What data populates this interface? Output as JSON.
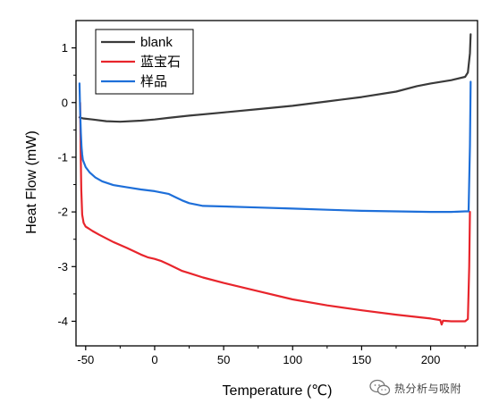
{
  "chart_data": {
    "type": "line",
    "title": "",
    "xlabel": "Temperature (℃)",
    "ylabel": "Heat Flow (mW)",
    "xlim": [
      -57,
      234
    ],
    "ylim": [
      -4.45,
      1.5
    ],
    "xticks": [
      -50,
      0,
      50,
      100,
      150,
      200
    ],
    "yticks": [
      1,
      0,
      -1,
      -2,
      -3,
      -4
    ],
    "grid": false,
    "legend_position": "top-left",
    "series": [
      {
        "name": "blank",
        "color": "#3a3a3a",
        "x": [
          -54.5,
          -52,
          -45,
          -35,
          -25,
          -10,
          0,
          10,
          25,
          50,
          75,
          100,
          125,
          150,
          175,
          190,
          200,
          215,
          225,
          227,
          228.5,
          229
        ],
        "y": [
          -0.27,
          -0.29,
          -0.31,
          -0.34,
          -0.35,
          -0.33,
          -0.31,
          -0.28,
          -0.24,
          -0.18,
          -0.12,
          -0.06,
          0.02,
          0.1,
          0.2,
          0.3,
          0.35,
          0.41,
          0.47,
          0.55,
          0.9,
          1.25
        ]
      },
      {
        "name": "蓝宝石",
        "color": "#e8252c",
        "x": [
          -54,
          -53.6,
          -53.2,
          -52.5,
          -51.5,
          -50,
          -48,
          -45,
          -40,
          -30,
          -20,
          -10,
          -5,
          0,
          5,
          10,
          15,
          20,
          25,
          35,
          50,
          75,
          100,
          125,
          150,
          175,
          200,
          207,
          208,
          209,
          215,
          225,
          227,
          228,
          228.5
        ],
        "y": [
          0.0,
          -0.9,
          -1.6,
          -2.05,
          -2.2,
          -2.27,
          -2.3,
          -2.35,
          -2.42,
          -2.55,
          -2.66,
          -2.78,
          -2.83,
          -2.86,
          -2.9,
          -2.96,
          -3.02,
          -3.08,
          -3.12,
          -3.2,
          -3.3,
          -3.45,
          -3.6,
          -3.71,
          -3.8,
          -3.88,
          -3.95,
          -3.98,
          -4.06,
          -3.99,
          -4.0,
          -4.0,
          -3.96,
          -3.0,
          -2.0
        ]
      },
      {
        "name": "样品",
        "color": "#1e6fd9",
        "x": [
          -54.5,
          -54,
          -53.5,
          -53,
          -52.5,
          -52,
          -50,
          -47,
          -43,
          -38,
          -30,
          -20,
          -10,
          0,
          10,
          15,
          20,
          25,
          35,
          50,
          75,
          100,
          125,
          150,
          175,
          200,
          215,
          225,
          227.5,
          228.5,
          229
        ],
        "y": [
          0.35,
          -0.15,
          -0.55,
          -0.82,
          -0.95,
          -1.05,
          -1.18,
          -1.28,
          -1.37,
          -1.44,
          -1.51,
          -1.55,
          -1.59,
          -1.62,
          -1.67,
          -1.73,
          -1.79,
          -1.84,
          -1.89,
          -1.9,
          -1.92,
          -1.94,
          -1.96,
          -1.98,
          -1.99,
          -2.0,
          -2.0,
          -1.99,
          -1.99,
          -0.8,
          0.38
        ]
      }
    ]
  },
  "watermark": {
    "text": "热分析与吸附"
  }
}
